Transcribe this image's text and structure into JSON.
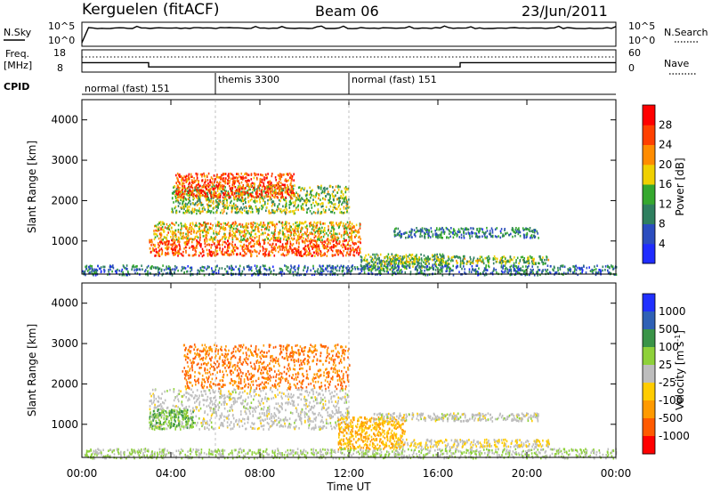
{
  "header": {
    "station": "Kerguelen (fitACF)",
    "beam": "Beam 06",
    "date": "23/Jun/2011"
  },
  "colors": {
    "frame": "#000000",
    "power_scale": [
      "#1f2cff",
      "#2b4dbf",
      "#2f7f5f",
      "#35a82e",
      "#f0d000",
      "#ff8c00",
      "#ff4000",
      "#ff0000"
    ],
    "velocity_scale": [
      "#2030ff",
      "#2f61b5",
      "#3a9448",
      "#8ed13a",
      "#bdbdbd",
      "#ffcc00",
      "#ff9a00",
      "#ff5a00",
      "#ff0000"
    ]
  },
  "top_panels": {
    "nsky": {
      "label": "N.Sky",
      "yticks_left": [
        "10^5",
        "10^0"
      ],
      "yticks_right": [
        "10^5",
        "10^0"
      ],
      "right_label": "N.Search"
    },
    "freq": {
      "label_line1": "Freq.",
      "label_line2": "[MHz]",
      "yticks_left": [
        "18",
        "8"
      ],
      "yticks_right": [
        "60",
        "0"
      ],
      "right_label": "Nave",
      "freq_steps": [
        {
          "start_h": 0.0,
          "end_h": 3.0,
          "mhz": 12.0
        },
        {
          "start_h": 3.0,
          "end_h": 17.0,
          "mhz": 10.0
        },
        {
          "start_h": 17.0,
          "end_h": 24.0,
          "mhz": 12.0
        }
      ]
    },
    "cpid": {
      "label": "CPID",
      "modes": [
        {
          "start_h": 0.0,
          "end_h": 6.0,
          "text": "normal (fast) 151"
        },
        {
          "start_h": 6.0,
          "end_h": 12.0,
          "text": "themis 3300"
        },
        {
          "start_h": 12.0,
          "end_h": 24.0,
          "text": "normal (fast) 151"
        }
      ]
    }
  },
  "chart_data": [
    {
      "type": "heatmap",
      "name": "power",
      "ylabel": "Slant Range [km]",
      "ylim": [
        180,
        4500
      ],
      "yticks": [
        1000,
        2000,
        3000,
        4000
      ],
      "xlim": [
        0,
        24
      ],
      "colorbar": {
        "label": "Power [dB]",
        "ticks": [
          "4",
          "8",
          "12",
          "16",
          "20",
          "24",
          "28"
        ],
        "range": [
          0,
          30
        ]
      },
      "scatter_regions": [
        {
          "t0": 3.0,
          "t1": 12.5,
          "r0": 650,
          "r1": 1050,
          "value": 24
        },
        {
          "t0": 3.2,
          "t1": 12.5,
          "r0": 1050,
          "r1": 1500,
          "value": 18
        },
        {
          "t0": 4.0,
          "t1": 12.0,
          "r0": 1700,
          "r1": 2400,
          "value": 14
        },
        {
          "t0": 4.2,
          "t1": 9.5,
          "r0": 2100,
          "r1": 2700,
          "value": 24
        },
        {
          "t0": 12.5,
          "t1": 16.5,
          "r0": 300,
          "r1": 700,
          "value": 12
        },
        {
          "t0": 14.0,
          "t1": 20.5,
          "r0": 1100,
          "r1": 1350,
          "value": 9
        },
        {
          "t0": 13.5,
          "t1": 21.0,
          "r0": 450,
          "r1": 650,
          "value": 14
        },
        {
          "t0": 0.0,
          "t1": 24.0,
          "r0": 180,
          "r1": 420,
          "value": 8
        }
      ]
    },
    {
      "type": "heatmap",
      "name": "velocity",
      "ylabel": "Slant Range [km]",
      "xlabel": "Time UT",
      "ylim": [
        180,
        4500
      ],
      "yticks": [
        1000,
        2000,
        3000,
        4000
      ],
      "xlim": [
        0,
        24
      ],
      "xticks": [
        "00:00",
        "04:00",
        "08:00",
        "12:00",
        "16:00",
        "20:00",
        "00:00"
      ],
      "colorbar": {
        "label": "Velocity [m s-1]",
        "ticks": [
          "1000",
          "500",
          "100",
          "25",
          "-25",
          "-100",
          "-500",
          "-1000"
        ]
      },
      "scatter_regions": [
        {
          "t0": 4.5,
          "t1": 12.0,
          "r0": 1900,
          "r1": 3000,
          "value": -500
        },
        {
          "t0": 3.0,
          "t1": 12.0,
          "r0": 900,
          "r1": 1900,
          "value": 0
        },
        {
          "t0": 3.0,
          "t1": 5.0,
          "r0": 900,
          "r1": 1400,
          "value": 100
        },
        {
          "t0": 11.5,
          "t1": 14.5,
          "r0": 400,
          "r1": 1200,
          "value": -100
        },
        {
          "t0": 13.0,
          "t1": 20.5,
          "r0": 1100,
          "r1": 1300,
          "value": 0
        },
        {
          "t0": 14.0,
          "t1": 21.0,
          "r0": 450,
          "r1": 650,
          "value": -25
        },
        {
          "t0": 0.0,
          "t1": 24.0,
          "r0": 180,
          "r1": 420,
          "value": 25
        }
      ]
    }
  ]
}
